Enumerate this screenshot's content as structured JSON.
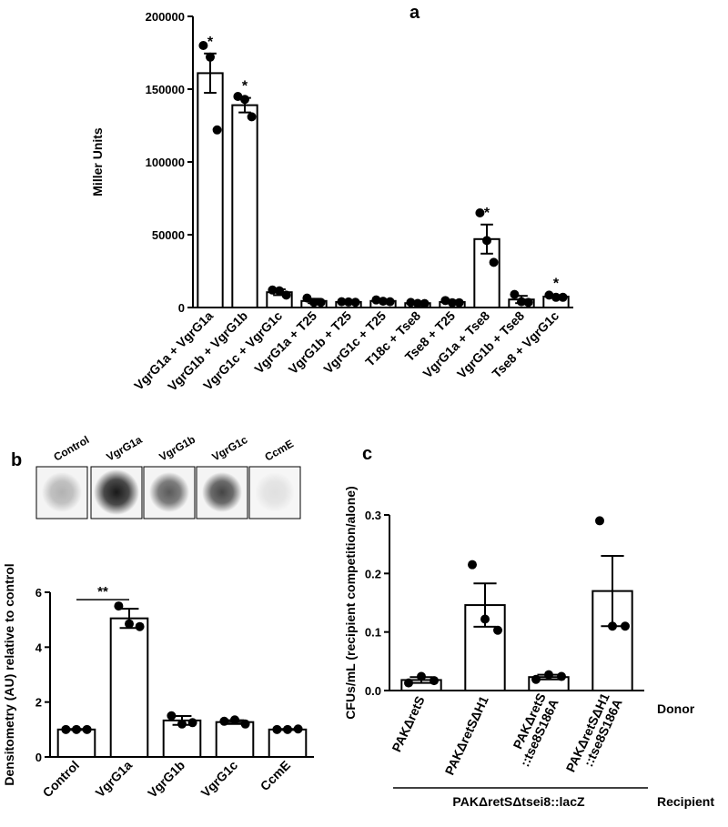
{
  "chart_data": [
    {
      "type": "bar",
      "panel_label": "a",
      "y_label": "Miller Units",
      "categories": [
        "VgrG1a + VgrG1a",
        "VgrG1b + VgrG1b",
        "VgrG1c + VgrG1c",
        "VgrG1a + T25",
        "VgrG1b + T25",
        "VgrG1c + T25",
        "T18c + Tse8",
        "Tse8 + T25",
        "VgrG1a + Tse8",
        "VgrG1b + Tse8",
        "Tse8 + VgrG1c"
      ],
      "values": [
        161000,
        139000,
        10500,
        4500,
        3800,
        4500,
        3000,
        3800,
        47000,
        5500,
        7500
      ],
      "errors": [
        13500,
        5000,
        2000,
        1500,
        500,
        800,
        500,
        900,
        10000,
        2500,
        800
      ],
      "points": [
        [
          180000,
          172000,
          122000
        ],
        [
          145000,
          143000,
          131000
        ],
        [
          12000,
          11500,
          8500
        ],
        [
          6500,
          3500,
          3500
        ],
        [
          4000,
          3800,
          3600
        ],
        [
          5200,
          4300,
          4000
        ],
        [
          3500,
          2800,
          2700
        ],
        [
          4800,
          3300,
          3300
        ],
        [
          65000,
          46000,
          31000
        ],
        [
          9000,
          4000,
          3500
        ],
        [
          8500,
          7000,
          7000
        ]
      ],
      "value_annotations": [
        "*",
        "*",
        null,
        null,
        null,
        null,
        null,
        null,
        "*",
        null,
        "*"
      ],
      "ylim": [
        0,
        200000
      ],
      "yticks": [
        0,
        50000,
        100000,
        150000,
        200000
      ],
      "color": "#ffffff"
    },
    {
      "type": "bar",
      "panel_label": "b",
      "y_label": "Densitometry (AU) relative to control",
      "blot_labels": [
        "Control",
        "VgrG1a",
        "VgrG1b",
        "VgrG1c",
        "CcmE"
      ],
      "categories": [
        "Control",
        "VgrG1a",
        "VgrG1b",
        "VgrG1c",
        "CcmE"
      ],
      "values": [
        1.0,
        5.05,
        1.33,
        1.27,
        1.0
      ],
      "errors": [
        0.02,
        0.35,
        0.16,
        0.07,
        0.02
      ],
      "points": [
        [
          1.0,
          1.0,
          1.0
        ],
        [
          5.5,
          4.85,
          4.75
        ],
        [
          1.5,
          1.2,
          1.25
        ],
        [
          1.3,
          1.35,
          1.2
        ],
        [
          1.0,
          1.0,
          1.02
        ]
      ],
      "annotations": [
        {
          "text": "**",
          "categories": [
            0,
            1
          ]
        }
      ],
      "ylim": [
        0,
        6
      ],
      "yticks": [
        0,
        2,
        4,
        6
      ],
      "color": "#ffffff"
    },
    {
      "type": "bar",
      "panel_label": "c",
      "y_label": "CFUs/mL (recipient competition/alone)",
      "categories": [
        "PAKΔretS",
        "PAKΔretSΔH1",
        "PAKΔretS\n::tse8S186A",
        "PAKΔretSΔH1\n::tse8S186A"
      ],
      "values": [
        0.018,
        0.146,
        0.023,
        0.17
      ],
      "errors": [
        0.005,
        0.037,
        0.004,
        0.06
      ],
      "points": [
        [
          0.013,
          0.024,
          0.017
        ],
        [
          0.215,
          0.122,
          0.103
        ],
        [
          0.019,
          0.027,
          0.024
        ],
        [
          0.29,
          0.11,
          0.11
        ]
      ],
      "donor_label": "Donor",
      "recipient_label": "Recipient",
      "recipient_name": "PAKΔretSΔtsei8::lacZ",
      "ylim": [
        0,
        0.3
      ],
      "yticks": [
        {
          "value": 0,
          "label": "0.0"
        },
        0.1,
        0.2,
        0.3
      ],
      "color": "#ffffff"
    }
  ]
}
